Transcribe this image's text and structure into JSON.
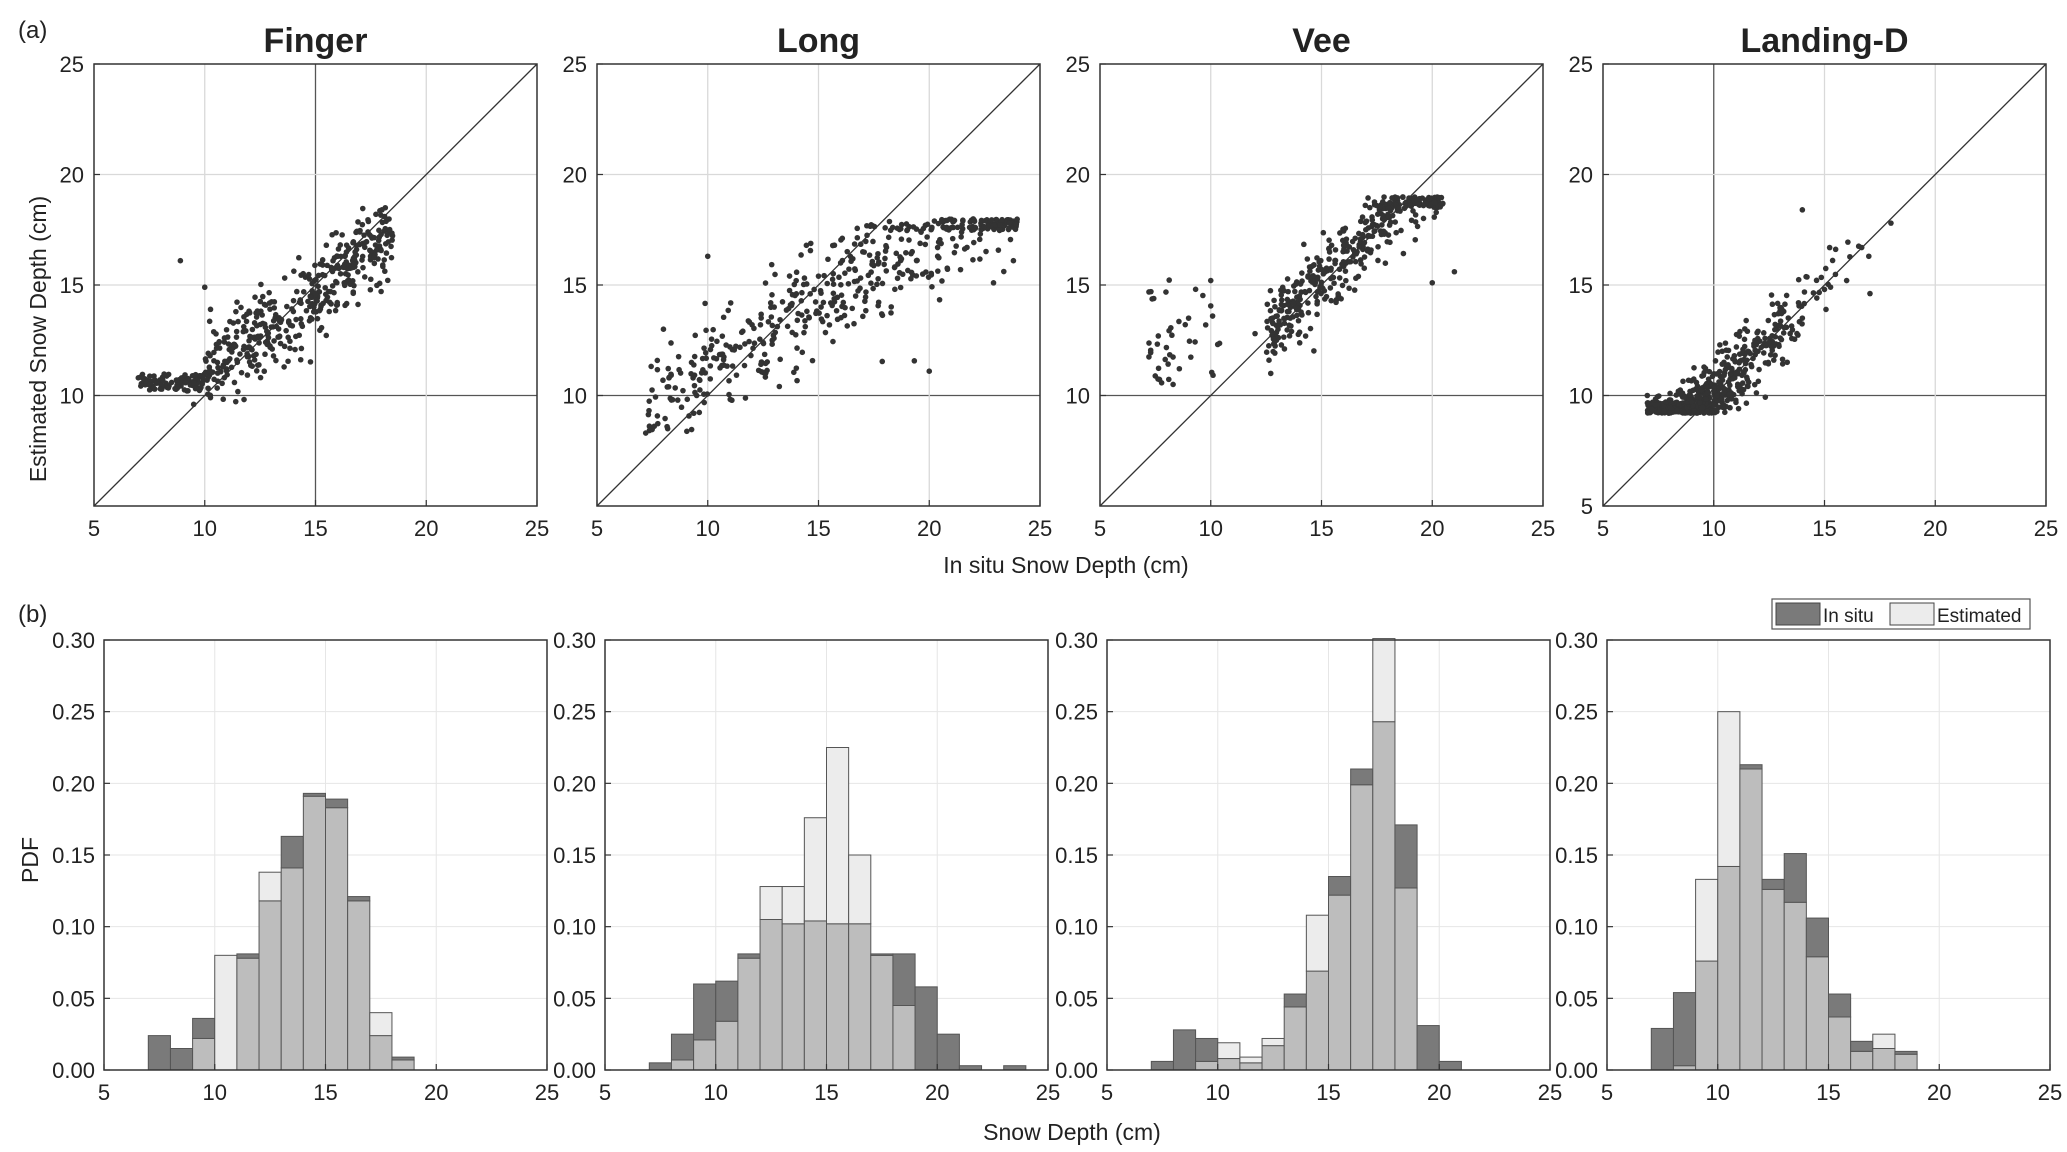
{
  "figure": {
    "panel_a_label": "(a)",
    "panel_b_label": "(b)",
    "scatter_ylabel": "Estimated Snow Depth (cm)",
    "scatter_xlabel": "In situ Snow Depth (cm)",
    "hist_ylabel": "PDF",
    "hist_xlabel": "Snow Depth (cm)",
    "legend": {
      "in_situ": "In situ",
      "estimated": "Estimated"
    },
    "colors": {
      "in_situ": "#7a7a7a",
      "estimated": "#ececec",
      "overlap": "#bdbdbd",
      "points": "#333333",
      "grid": "#d9d9d9",
      "grid_dark": "#555555"
    }
  },
  "chart_data": [
    {
      "type": "scatter",
      "title": "Finger",
      "site": "Finger",
      "xlabel": "In situ Snow Depth (cm)",
      "ylabel": "Estimated Snow Depth (cm)",
      "xlim": [
        5,
        25
      ],
      "ylim": [
        5,
        25
      ],
      "xticks": [
        5,
        10,
        15,
        20,
        25
      ],
      "yticks": [
        10,
        15,
        20,
        25
      ],
      "one_to_one_line": true,
      "grid": true,
      "points_summary": {
        "n_approx": 520,
        "x_range": [
          7,
          18.5
        ],
        "y_range": [
          9.5,
          18.5
        ],
        "slope_approx": 0.78,
        "offset_at_10cm": 10.8
      },
      "sample_points": [
        [
          7.0,
          10.8
        ],
        [
          7.5,
          10.5
        ],
        [
          8.0,
          10.3
        ],
        [
          8.9,
          16.1
        ],
        [
          9.5,
          9.6
        ],
        [
          10.0,
          14.9
        ],
        [
          11.0,
          11.5
        ],
        [
          12.0,
          12.2
        ],
        [
          13.0,
          13.1
        ],
        [
          14.0,
          13.8
        ],
        [
          15.0,
          14.6
        ],
        [
          16.0,
          16.3
        ],
        [
          17.0,
          17.4
        ],
        [
          18.0,
          18.4
        ]
      ]
    },
    {
      "type": "scatter",
      "title": "Long",
      "site": "Long",
      "xlim": [
        5,
        25
      ],
      "ylim": [
        5,
        25
      ],
      "xticks": [
        5,
        10,
        15,
        20,
        25
      ],
      "yticks": [
        10,
        15,
        20,
        25
      ],
      "one_to_one_line": true,
      "grid": true,
      "points_summary": {
        "n_approx": 480,
        "x_range": [
          7.2,
          24
        ],
        "y_range": [
          8.3,
          18
        ],
        "slope_approx": 0.6,
        "offset_at_10cm": 11.2
      },
      "sample_points": [
        [
          7.2,
          8.3
        ],
        [
          8.0,
          13.0
        ],
        [
          9.5,
          10.0
        ],
        [
          10.0,
          16.3
        ],
        [
          11.0,
          12.2
        ],
        [
          12.0,
          13.2
        ],
        [
          13.0,
          14.0
        ],
        [
          14.0,
          14.6
        ],
        [
          15.0,
          15.4
        ],
        [
          16.0,
          16.0
        ],
        [
          17.0,
          16.5
        ],
        [
          18.0,
          16.2
        ],
        [
          20.0,
          11.1
        ],
        [
          22.0,
          17.5
        ],
        [
          23.8,
          16.1
        ]
      ]
    },
    {
      "type": "scatter",
      "title": "Vee",
      "site": "Vee",
      "xlim": [
        5,
        25
      ],
      "ylim": [
        5,
        25
      ],
      "xticks": [
        5,
        10,
        15,
        20,
        25
      ],
      "yticks": [
        10,
        15,
        20,
        25
      ],
      "one_to_one_line": true,
      "grid": true,
      "points_summary": {
        "n_approx": 430,
        "x_range": [
          7.2,
          21
        ],
        "y_range": [
          10.3,
          19
        ],
        "slope_approx": 0.95,
        "offset_at_10cm": 10.5
      },
      "sample_points": [
        [
          7.3,
          14.7
        ],
        [
          8.3,
          10.5
        ],
        [
          9.0,
          13.5
        ],
        [
          10.0,
          15.2
        ],
        [
          12.0,
          12.8
        ],
        [
          13.0,
          13.6
        ],
        [
          14.0,
          14.5
        ],
        [
          15.0,
          15.7
        ],
        [
          16.0,
          16.8
        ],
        [
          17.0,
          17.5
        ],
        [
          18.0,
          18.1
        ],
        [
          19.0,
          18.6
        ],
        [
          20.0,
          15.1
        ],
        [
          21.0,
          15.6
        ]
      ]
    },
    {
      "type": "scatter",
      "title": "Landing-D",
      "site": "Landing-D",
      "xlim": [
        5,
        25
      ],
      "ylim": [
        5,
        25
      ],
      "xticks": [
        5,
        10,
        15,
        20,
        25
      ],
      "yticks": [
        5,
        10,
        15,
        20,
        25
      ],
      "one_to_one_line": true,
      "grid": true,
      "points_summary": {
        "n_approx": 620,
        "x_range": [
          7,
          18.5
        ],
        "y_range": [
          9.2,
          18.4
        ],
        "slope_approx": 0.95,
        "offset_at_10cm": 10.1
      },
      "sample_points": [
        [
          7.0,
          10.0
        ],
        [
          8.0,
          9.8
        ],
        [
          9.0,
          9.7
        ],
        [
          10.0,
          10.2
        ],
        [
          11.0,
          11.0
        ],
        [
          12.0,
          12.0
        ],
        [
          13.0,
          12.6
        ],
        [
          14.0,
          13.5
        ],
        [
          14.0,
          18.4
        ],
        [
          15.0,
          14.8
        ],
        [
          16.0,
          15.2
        ],
        [
          17.0,
          16.3
        ],
        [
          18.0,
          17.8
        ]
      ]
    },
    {
      "type": "bar",
      "site": "Finger",
      "histogram": true,
      "xlabel": "Snow Depth (cm)",
      "ylabel": "PDF",
      "xlim": [
        5,
        25
      ],
      "ylim": [
        0,
        0.3
      ],
      "xticks": [
        5,
        10,
        15,
        20,
        25
      ],
      "yticks": [
        0,
        0.05,
        0.1,
        0.15,
        0.2,
        0.25,
        0.3
      ],
      "bin_edges": [
        7,
        8,
        9,
        10,
        11,
        12,
        13,
        14,
        15,
        16,
        17,
        18,
        19,
        20,
        21,
        22,
        23,
        24
      ],
      "series": [
        {
          "name": "In situ",
          "values": [
            0.024,
            0.015,
            0.036,
            0.0,
            0.081,
            0.118,
            0.163,
            0.193,
            0.189,
            0.121,
            0.024,
            0.009,
            0,
            0,
            0,
            0,
            0
          ]
        },
        {
          "name": "Estimated",
          "values": [
            0,
            0,
            0.022,
            0.08,
            0.078,
            0.138,
            0.141,
            0.191,
            0.183,
            0.118,
            0.04,
            0.007,
            0,
            0,
            0,
            0,
            0
          ]
        }
      ]
    },
    {
      "type": "bar",
      "site": "Long",
      "histogram": true,
      "xlim": [
        5,
        25
      ],
      "ylim": [
        0,
        0.3
      ],
      "xticks": [
        5,
        10,
        15,
        20,
        25
      ],
      "yticks": [
        0,
        0.05,
        0.1,
        0.15,
        0.2,
        0.25,
        0.3
      ],
      "bin_edges": [
        7,
        8,
        9,
        10,
        11,
        12,
        13,
        14,
        15,
        16,
        17,
        18,
        19,
        20,
        21,
        22,
        23,
        24
      ],
      "series": [
        {
          "name": "In situ",
          "values": [
            0.005,
            0.025,
            0.06,
            0.062,
            0.081,
            0.105,
            0.102,
            0.104,
            0.102,
            0.102,
            0.081,
            0.081,
            0.058,
            0.025,
            0.003,
            0,
            0.003
          ]
        },
        {
          "name": "Estimated",
          "values": [
            0,
            0.007,
            0.021,
            0.034,
            0.078,
            0.128,
            0.128,
            0.176,
            0.225,
            0.15,
            0.08,
            0.045,
            0,
            0,
            0,
            0,
            0
          ]
        }
      ]
    },
    {
      "type": "bar",
      "site": "Vee",
      "histogram": true,
      "xlim": [
        5,
        25
      ],
      "ylim": [
        0,
        0.3
      ],
      "xticks": [
        5,
        10,
        15,
        20,
        25
      ],
      "yticks": [
        0,
        0.05,
        0.1,
        0.15,
        0.2,
        0.25,
        0.3
      ],
      "bin_edges": [
        7,
        8,
        9,
        10,
        11,
        12,
        13,
        14,
        15,
        16,
        17,
        18,
        19,
        20,
        21,
        22,
        23,
        24
      ],
      "series": [
        {
          "name": "In situ",
          "values": [
            0.006,
            0.028,
            0.022,
            0.008,
            0.005,
            0.017,
            0.053,
            0.069,
            0.135,
            0.21,
            0.243,
            0.171,
            0.031,
            0.006,
            0,
            0,
            0
          ]
        },
        {
          "name": "Estimated",
          "values": [
            0,
            0,
            0.006,
            0.019,
            0.009,
            0.022,
            0.044,
            0.108,
            0.122,
            0.199,
            0.301,
            0.127,
            0,
            0,
            0,
            0,
            0
          ]
        }
      ]
    },
    {
      "type": "bar",
      "site": "Landing-D",
      "histogram": true,
      "xlim": [
        5,
        25
      ],
      "ylim": [
        0,
        0.3
      ],
      "xticks": [
        5,
        10,
        15,
        20,
        25
      ],
      "yticks": [
        0,
        0.05,
        0.1,
        0.15,
        0.2,
        0.25,
        0.3
      ],
      "bin_edges": [
        7,
        8,
        9,
        10,
        11,
        12,
        13,
        14,
        15,
        16,
        17,
        18,
        19,
        20,
        21,
        22,
        23,
        24
      ],
      "series": [
        {
          "name": "In situ",
          "values": [
            0.029,
            0.054,
            0.076,
            0.142,
            0.213,
            0.133,
            0.151,
            0.106,
            0.053,
            0.02,
            0.015,
            0.013,
            0,
            0,
            0,
            0,
            0
          ]
        },
        {
          "name": "Estimated",
          "values": [
            0,
            0.003,
            0.133,
            0.25,
            0.21,
            0.126,
            0.117,
            0.079,
            0.037,
            0.013,
            0.025,
            0.011,
            0,
            0,
            0,
            0,
            0
          ]
        }
      ]
    }
  ]
}
